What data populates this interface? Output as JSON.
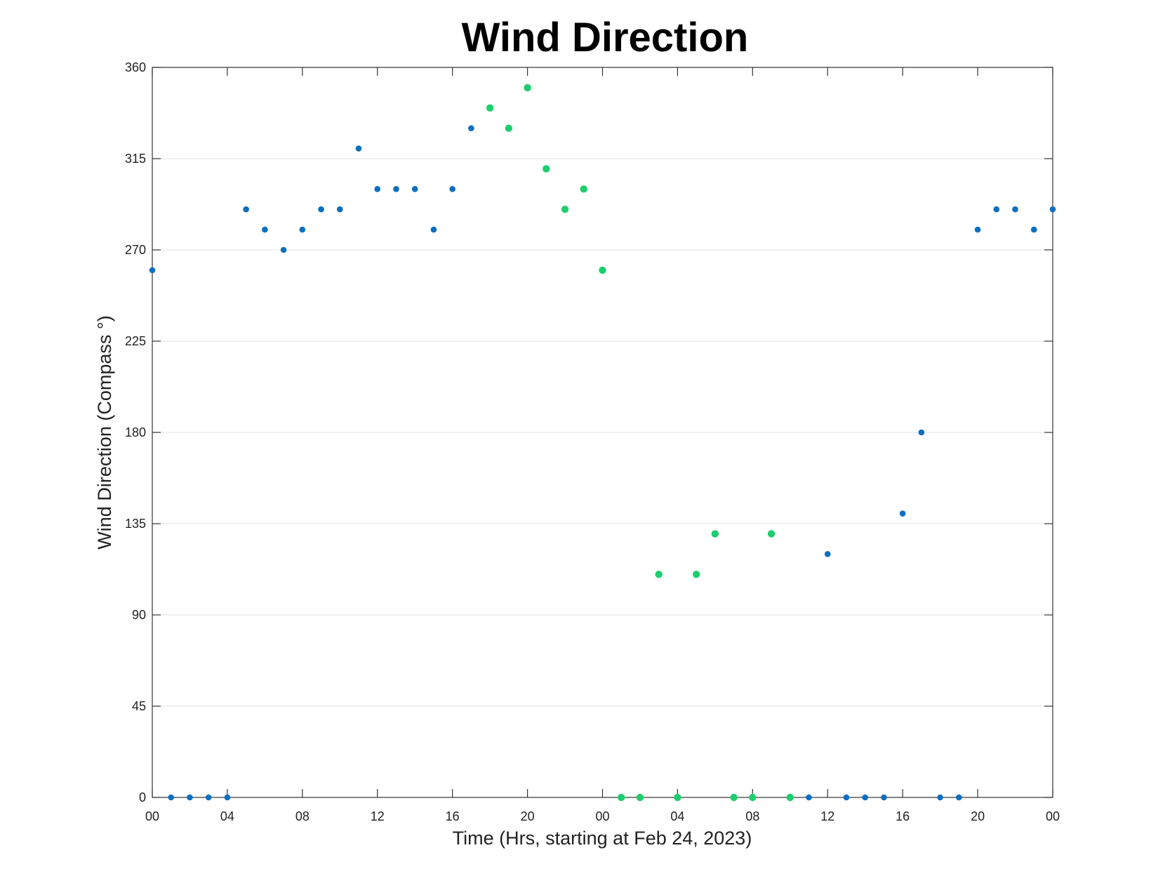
{
  "chart_data": {
    "type": "scatter",
    "title": "Wind Direction",
    "xlabel": "Time (Hrs, starting at Feb 24, 2023)",
    "ylabel": "Wind Direction (Compass °)",
    "xlim_hours": [
      0,
      48
    ],
    "ylim": [
      0,
      360
    ],
    "yticks": [
      0,
      45,
      90,
      135,
      180,
      225,
      270,
      315,
      360
    ],
    "xticks": [
      {
        "hour": 0,
        "label": "00"
      },
      {
        "hour": 4,
        "label": "04"
      },
      {
        "hour": 8,
        "label": "08"
      },
      {
        "hour": 12,
        "label": "12"
      },
      {
        "hour": 16,
        "label": "16"
      },
      {
        "hour": 20,
        "label": "20"
      },
      {
        "hour": 24,
        "label": "00"
      },
      {
        "hour": 28,
        "label": "04"
      },
      {
        "hour": 32,
        "label": "08"
      },
      {
        "hour": 36,
        "label": "12"
      },
      {
        "hour": 40,
        "label": "16"
      },
      {
        "hour": 44,
        "label": "20"
      },
      {
        "hour": 48,
        "label": "00"
      }
    ],
    "grid": "horizontal",
    "series": [
      {
        "color": "#0b6fbf",
        "points": [
          [
            0,
            260
          ],
          [
            1,
            0
          ],
          [
            2,
            0
          ],
          [
            3,
            0
          ],
          [
            4,
            0
          ],
          [
            5,
            290
          ],
          [
            6,
            280
          ],
          [
            7,
            270
          ],
          [
            8,
            280
          ],
          [
            9,
            290
          ],
          [
            10,
            290
          ],
          [
            11,
            320
          ],
          [
            12,
            300
          ],
          [
            13,
            300
          ],
          [
            14,
            300
          ],
          [
            15,
            280
          ],
          [
            16,
            300
          ],
          [
            17,
            330
          ],
          [
            35,
            0
          ],
          [
            36,
            120
          ],
          [
            37,
            0
          ],
          [
            38,
            0
          ],
          [
            39,
            0
          ],
          [
            40,
            140
          ],
          [
            41,
            180
          ],
          [
            42,
            0
          ],
          [
            43,
            0
          ],
          [
            44,
            280
          ],
          [
            45,
            290
          ],
          [
            46,
            290
          ],
          [
            47,
            280
          ],
          [
            48,
            290
          ]
        ]
      },
      {
        "color": "#1dce6e",
        "points": [
          [
            18,
            340
          ],
          [
            19,
            330
          ],
          [
            20,
            350
          ],
          [
            21,
            310
          ],
          [
            22,
            290
          ],
          [
            23,
            300
          ],
          [
            24,
            260
          ],
          [
            25,
            0
          ],
          [
            26,
            0
          ],
          [
            27,
            110
          ],
          [
            28,
            0
          ],
          [
            29,
            110
          ],
          [
            30,
            130
          ],
          [
            31,
            0
          ],
          [
            32,
            0
          ],
          [
            33,
            130
          ],
          [
            34,
            0
          ]
        ]
      }
    ]
  }
}
